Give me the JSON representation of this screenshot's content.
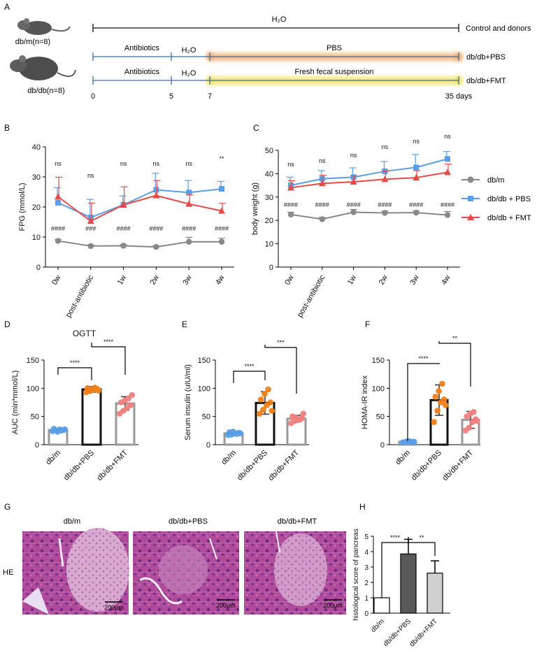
{
  "panel_letters": [
    "A",
    "B",
    "C",
    "D",
    "E",
    "F",
    "G",
    "H"
  ],
  "timeline": {
    "mouse_a_label": "db/m(n=8)",
    "mouse_b_label": "db/db(n=8)",
    "top_bar_label": "H₂O",
    "control_label": "Control and donors",
    "row1_antibiotics": "Antibiotics",
    "row1_h2o": "H₂O",
    "row1_treatment": "PBS",
    "row1_group": "db/db+PBS",
    "row2_antibiotics": "Antibiotics",
    "row2_h2o": "H₂O",
    "row2_treatment": "Fresh fecal suspension",
    "row2_group": "db/db+FMT",
    "day_ticks": [
      "0",
      "5",
      "7",
      "35 days"
    ],
    "colors": {
      "pbs_glow": "#f4a460",
      "fmt_glow": "#f0e050",
      "line": "#3a6ea5"
    }
  },
  "legend": {
    "items": [
      "db/m",
      "db/db + PBS",
      "db/db + FMT"
    ]
  },
  "colors": {
    "dbm": "#888888",
    "pbs": "#5b9ee8",
    "fmt": "#e84848",
    "dot_dbm": "#5b9ee8",
    "dot_pbs": "#f07f1a",
    "dot_fmt": "#f08080"
  },
  "histology": {
    "row_label": "HE",
    "titles": [
      "db/m",
      "db/db+PBS",
      "db/db+FMT"
    ],
    "scale_bar": "200μm"
  },
  "chart_data": [
    {
      "panel": "B",
      "type": "line",
      "ylabel": "FPG (mmol/L)",
      "ylim": [
        0,
        40
      ],
      "yticks": [
        "0",
        "10",
        "20",
        "30",
        "40"
      ],
      "categories": [
        "0w",
        "post-antibiotic",
        "1w",
        "2w",
        "3w",
        "4w"
      ],
      "series": [
        {
          "name": "db/m",
          "values": [
            8.7,
            7.0,
            7.1,
            6.7,
            8.4,
            8.4
          ],
          "err": [
            0.5,
            0.4,
            0.4,
            0.4,
            1.5,
            1.2
          ]
        },
        {
          "name": "db/db + PBS",
          "values": [
            21.4,
            16.5,
            20.7,
            25.7,
            24.8,
            26.0
          ],
          "err": [
            5,
            6,
            3,
            5.5,
            4,
            2.5
          ]
        },
        {
          "name": "db/db + FMT",
          "values": [
            23.4,
            15.3,
            20.7,
            23.8,
            21.0,
            18.7
          ],
          "err": [
            6.5,
            6,
            6,
            5,
            3,
            2.5
          ]
        }
      ],
      "sig_top": [
        "ns",
        "ns",
        "ns",
        "ns",
        "ns",
        "**"
      ],
      "sig_bottom": [
        "####",
        "###",
        "####",
        "####",
        "####",
        "####"
      ]
    },
    {
      "panel": "C",
      "type": "line",
      "ylabel": "body weight (g)",
      "ylim": [
        0,
        50
      ],
      "yticks": [
        "0",
        "10",
        "20",
        "30",
        "40",
        "50"
      ],
      "categories": [
        "0w",
        "post-antibiotic",
        "1w",
        "2w",
        "3w",
        "4w"
      ],
      "series": [
        {
          "name": "db/m",
          "values": [
            22.5,
            20.5,
            23.5,
            23.2,
            23.3,
            22.3
          ],
          "err": [
            1.0,
            0.8,
            1.2,
            0.8,
            0.8,
            1.5
          ]
        },
        {
          "name": "db/db + PBS",
          "values": [
            35.0,
            37.8,
            38.5,
            41.0,
            42.7,
            46.3
          ],
          "err": [
            3.5,
            3.5,
            4,
            4.2,
            5.5,
            3.2
          ]
        },
        {
          "name": "db/db + FMT",
          "values": [
            34.0,
            35.8,
            36.5,
            37.6,
            38.3,
            40.6
          ],
          "err": [
            3.0,
            3.5,
            2.5,
            3.5,
            3.0,
            3.5
          ]
        }
      ],
      "sig_top": [
        "ns",
        "ns",
        "ns",
        "ns",
        "ns",
        "ns"
      ],
      "sig_bottom": [
        "####",
        "####",
        "####",
        "####",
        "####",
        "####"
      ]
    },
    {
      "panel": "D",
      "type": "bar",
      "title": "OGTT",
      "ylabel": "AUC (min*mmol/L)",
      "ylim": [
        0,
        150
      ],
      "yticks": [
        "0",
        "50",
        "100",
        "150"
      ],
      "categories": [
        "db/m",
        "db/db+PBS",
        "db/db+FMT"
      ],
      "values": [
        26,
        98,
        73
      ],
      "err": [
        2,
        5,
        12
      ],
      "points": [
        [
          24,
          25,
          27,
          26,
          28,
          23,
          25,
          27
        ],
        [
          93,
          95,
          97,
          99,
          100,
          98,
          101,
          96
        ],
        [
          55,
          60,
          65,
          70,
          75,
          78,
          82,
          88
        ]
      ],
      "comparisons": [
        {
          "pair": [
            0,
            1
          ],
          "label": "****"
        },
        {
          "pair": [
            1,
            2
          ],
          "label": "****"
        }
      ]
    },
    {
      "panel": "E",
      "type": "bar",
      "ylabel": "Serum insulin (uIU/ml)",
      "ylim": [
        0,
        150
      ],
      "yticks": [
        "0",
        "50",
        "100",
        "150"
      ],
      "categories": [
        "db/m",
        "db/db+PBS",
        "db/db+FMT"
      ],
      "values": [
        20,
        74,
        46
      ],
      "err": [
        3,
        20,
        6
      ],
      "points": [
        [
          17,
          18,
          20,
          21,
          22,
          23,
          19,
          20
        ],
        [
          55,
          62,
          70,
          75,
          80,
          90,
          98,
          60
        ],
        [
          38,
          42,
          45,
          47,
          50,
          48,
          44,
          55
        ]
      ],
      "comparisons": [
        {
          "pair": [
            0,
            1
          ],
          "label": "****"
        },
        {
          "pair": [
            1,
            2
          ],
          "label": "***"
        }
      ]
    },
    {
      "panel": "F",
      "type": "bar",
      "ylabel": "HOMA-IR index",
      "ylim": [
        0,
        150
      ],
      "yticks": [
        "0",
        "50",
        "100",
        "150"
      ],
      "categories": [
        "db/m",
        "db/db+PBS",
        "db/db+FMT"
      ],
      "values": [
        5,
        79,
        44
      ],
      "err": [
        1,
        27,
        15
      ],
      "points": [
        [
          4,
          5,
          6,
          5,
          4,
          6,
          5,
          5
        ],
        [
          40,
          60,
          75,
          80,
          85,
          95,
          108,
          70
        ],
        [
          25,
          30,
          40,
          45,
          50,
          55,
          58,
          42
        ]
      ],
      "comparisons": [
        {
          "pair": [
            0,
            1
          ],
          "label": "****"
        },
        {
          "pair": [
            1,
            2
          ],
          "label": "**"
        }
      ]
    },
    {
      "panel": "H",
      "type": "bar",
      "ylabel": "histological score of pancreas",
      "ylim": [
        0,
        5
      ],
      "yticks": [
        "0",
        "1",
        "2",
        "3",
        "4",
        "5"
      ],
      "categories": [
        "db/m",
        "db/db+PBS",
        "db/db+FMT"
      ],
      "values": [
        1,
        3.85,
        2.6
      ],
      "err": [
        0,
        0.95,
        0.8
      ],
      "bar_colors": [
        "#ffffff",
        "#595959",
        "#d0d0d0"
      ],
      "comparisons": [
        {
          "pair": [
            0,
            1
          ],
          "label": "****"
        },
        {
          "pair": [
            1,
            2
          ],
          "label": "**"
        }
      ]
    }
  ]
}
